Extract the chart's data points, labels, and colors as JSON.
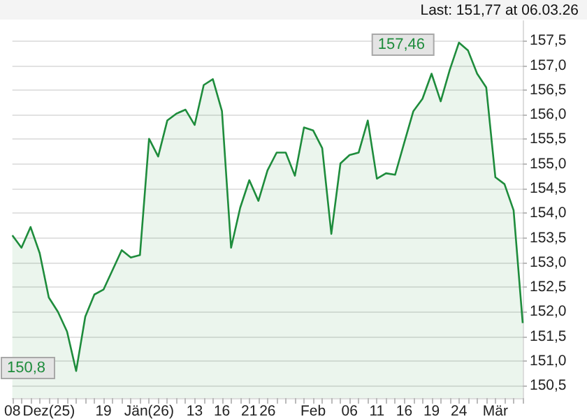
{
  "chart_data": {
    "type": "area",
    "categories": [
      "08",
      null,
      null,
      null,
      "Dez(25)",
      null,
      null,
      null,
      null,
      null,
      "19",
      null,
      null,
      null,
      null,
      "Jän(26)",
      null,
      null,
      null,
      null,
      "13",
      null,
      null,
      "16",
      null,
      null,
      "21",
      null,
      "26",
      null,
      null,
      null,
      null,
      "Feb",
      null,
      null,
      null,
      "06",
      null,
      null,
      "11",
      null,
      null,
      "16",
      null,
      null,
      "19",
      null,
      null,
      "24",
      null,
      null,
      null,
      "Mär",
      null,
      null,
      null
    ],
    "series": [
      {
        "color": "#1e8c3c",
        "values": [
          153.55,
          153.3,
          153.72,
          153.19,
          152.29,
          152.0,
          151.6,
          150.8,
          151.9,
          152.35,
          152.45,
          152.85,
          153.25,
          153.1,
          153.15,
          155.51,
          155.15,
          155.88,
          156.02,
          156.1,
          155.79,
          156.6,
          156.72,
          156.07,
          153.3,
          154.11,
          154.67,
          154.25,
          154.87,
          155.23,
          155.23,
          154.76,
          155.74,
          155.68,
          155.32,
          153.58,
          155.01,
          155.18,
          155.23,
          155.88,
          154.7,
          154.81,
          154.78,
          155.43,
          156.07,
          156.32,
          156.83,
          156.27,
          156.91,
          157.46,
          157.3,
          156.83,
          156.55,
          154.73,
          154.59,
          154.06,
          151.77
        ]
      }
    ],
    "ylim": [
      150.25,
      157.9
    ],
    "yticks": [
      {
        "value": 150.5,
        "label": "150,5"
      },
      {
        "value": 151,
        "label": "151,0"
      },
      {
        "value": 151.5,
        "label": "151,5"
      },
      {
        "value": 152,
        "label": "152,0"
      },
      {
        "value": 152.5,
        "label": "152,5"
      },
      {
        "value": 153,
        "label": "153,0"
      },
      {
        "value": 153.5,
        "label": "153,5"
      },
      {
        "value": 154,
        "label": "154,0"
      },
      {
        "value": 154.5,
        "label": "154,5"
      },
      {
        "value": 155,
        "label": "155,0"
      },
      {
        "value": 155.5,
        "label": "155,5"
      },
      {
        "value": 156,
        "label": "156,0"
      },
      {
        "value": 156.5,
        "label": "156,5"
      },
      {
        "value": 157,
        "label": "157,0"
      },
      {
        "value": 157.5,
        "label": "157,5"
      }
    ],
    "grid": "y",
    "annotations": [
      "Last: 151,77 at 06.03.26",
      {
        "text": "157,46",
        "x": "24",
        "y": 157.46
      },
      "150,8"
    ]
  }
}
